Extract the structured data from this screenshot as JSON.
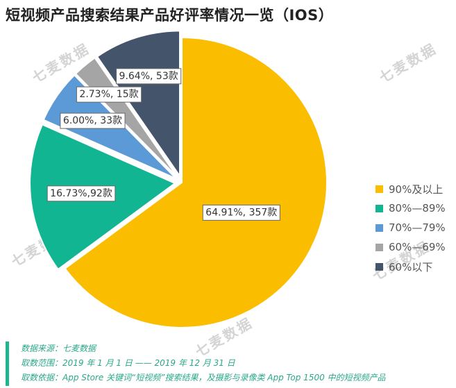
{
  "title": "短视频产品搜索结果产品好评率情况一览（IOS）",
  "watermark": "七麦数据",
  "chart_data": {
    "type": "pie",
    "title": "短视频产品搜索结果产品好评率情况一览（IOS）",
    "slices": [
      {
        "label": "90%及以上",
        "percent": 64.91,
        "count": 357,
        "data_label": "64.91%, 357款",
        "color": "#fbbd00",
        "exploded": false
      },
      {
        "label": "80%—89%",
        "percent": 16.73,
        "count": 92,
        "data_label": "16.73%,92款",
        "color": "#11b592",
        "exploded": true
      },
      {
        "label": "70%—79%",
        "percent": 6.0,
        "count": 33,
        "data_label": "6.00%, 33款",
        "color": "#5b9ad7",
        "exploded": true
      },
      {
        "label": "60%—69%",
        "percent": 2.73,
        "count": 15,
        "data_label": "2.73%, 15款",
        "color": "#a5a5a5",
        "exploded": true
      },
      {
        "label": "60%以下",
        "percent": 9.64,
        "count": 53,
        "data_label": "9.64%, 53款",
        "color": "#44546a",
        "exploded": true
      }
    ],
    "legend_position": "right"
  },
  "footer": {
    "source": "数据来源：七麦数据",
    "range": "取数范围：2019 年 1 月 1 日 —— 2019 年 12 月 31 日",
    "basis": "取数依据：App Store 关键词“短视频”搜索结果，及摄影与录像类 App Top 1500 中的短视频产品"
  }
}
